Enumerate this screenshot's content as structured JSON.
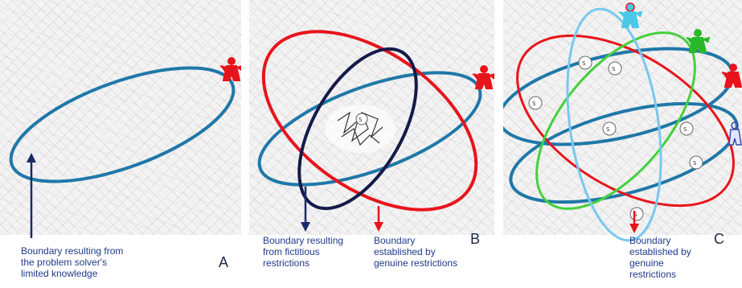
{
  "panels": [
    {
      "letter": "A",
      "captions": [
        "Boundary resulting from\nthe problem solver's\nlimited knowledge"
      ]
    },
    {
      "letter": "B",
      "captions": [
        "Boundary resulting\nfrom fictitious\nrestrictions",
        "Boundary\nestablished by\ngenuine restrictions"
      ]
    },
    {
      "letter": "C",
      "captions": [
        "Boundary\nestablished by\ngenuine\nrestrictions"
      ]
    }
  ],
  "solution_label": "S",
  "solution_subscripts": {
    "center_b": "0",
    "c_left": "1",
    "c_top1": "1",
    "c_top2": "1",
    "c_center": "1",
    "c_right": "1",
    "c_right2": "1",
    "c_bottom": "1"
  },
  "colors": {
    "blue_ellipse": "#1f78a8",
    "red_ellipse": "#e8141b",
    "dark_ellipse": "#141a4a",
    "light_blue_ellipse": "#78c8f0",
    "green_ellipse": "#44d03c",
    "arrow_dark": "#1c2a6a",
    "arrow_red": "#e8141b",
    "figure_red": "#e8141b",
    "figure_cyan": "#4ac8e8",
    "figure_green": "#2ab82a",
    "figure_outline_blue": "#3a4aa8"
  },
  "icons": [
    "person-red-icon",
    "person-cyan-icon",
    "person-green-icon",
    "person-outline-icon",
    "scribble-icon"
  ]
}
